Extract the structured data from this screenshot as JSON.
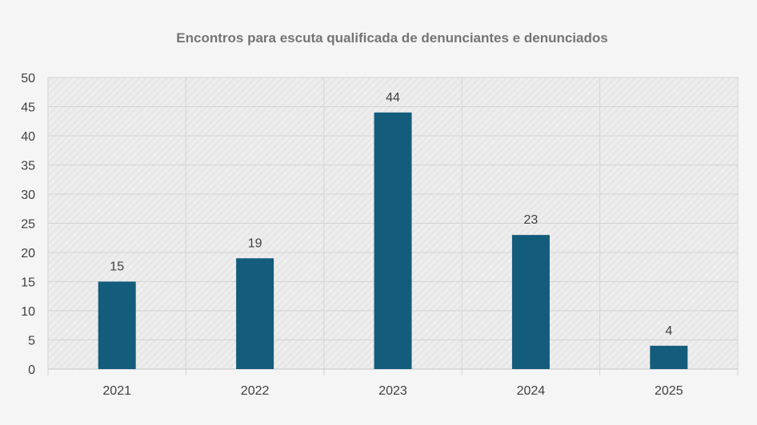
{
  "chart_data": {
    "type": "bar",
    "title": "Encontros para escuta qualificada de denunciantes e denunciados",
    "categories": [
      "2021",
      "2022",
      "2023",
      "2024",
      "2025"
    ],
    "values": [
      15,
      19,
      44,
      23,
      4
    ],
    "ylim": [
      0,
      50
    ],
    "yticks": [
      0,
      5,
      10,
      15,
      20,
      25,
      30,
      35,
      40,
      45,
      50
    ],
    "grid": true,
    "legend": "none",
    "data_labels": true,
    "colors": {
      "bar": "#135c7c",
      "background": "#f5f5f5",
      "plot_area": "#ececec",
      "gridline": "#d4d4d4",
      "text": "#404040",
      "title": "#757575"
    }
  }
}
